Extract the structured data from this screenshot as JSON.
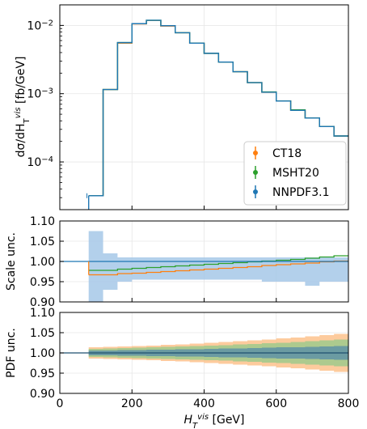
{
  "chart_data": [
    {
      "type": "line",
      "panel": "main",
      "ylabel_parts": {
        "main": "dσ/dH",
        "sub": "T",
        "sup": "vis",
        "unit": " [fb/GeV]"
      },
      "yscale": "log",
      "ylim": [
        2e-05,
        0.02
      ],
      "xlim": [
        0,
        800
      ],
      "grid": true,
      "y_tick_labels": [
        {
          "value": 0.01,
          "base": "10",
          "exp": "−2"
        },
        {
          "value": 0.001,
          "base": "10",
          "exp": "−3"
        },
        {
          "value": 0.0001,
          "base": "10",
          "exp": "−4"
        }
      ],
      "legend": {
        "placement": "lower-right",
        "entries": [
          "CT18",
          "MSHT20",
          "NNPDF3.1"
        ]
      },
      "bin_edges": [
        80,
        120,
        160,
        200,
        240,
        280,
        320,
        360,
        400,
        440,
        480,
        520,
        560,
        600,
        640,
        680,
        720,
        760,
        800
      ],
      "series": [
        {
          "name": "CT18",
          "color": "#ff7f0e",
          "values": [
            3.2e-05,
            0.00115,
            0.0055,
            0.0105,
            0.0118,
            0.0098,
            0.0078,
            0.0055,
            0.0039,
            0.0029,
            0.0021,
            0.00145,
            0.00105,
            0.00078,
            0.00057,
            0.00044,
            0.00033,
            0.00024
          ]
        },
        {
          "name": "MSHT20",
          "color": "#2ca02c",
          "values": [
            3.2e-05,
            0.00115,
            0.0056,
            0.0106,
            0.0119,
            0.0099,
            0.0078,
            0.0055,
            0.0039,
            0.0029,
            0.0021,
            0.00145,
            0.00106,
            0.00078,
            0.00058,
            0.00044,
            0.00033,
            0.00024
          ]
        },
        {
          "name": "NNPDF3.1",
          "color": "#1f77b4",
          "values": [
            3.2e-05,
            0.00115,
            0.0056,
            0.0106,
            0.0119,
            0.0099,
            0.0078,
            0.0055,
            0.0039,
            0.0029,
            0.0021,
            0.00145,
            0.00105,
            0.00078,
            0.00057,
            0.00044,
            0.00033,
            0.00024
          ]
        }
      ]
    },
    {
      "type": "area",
      "panel": "scale",
      "ylabel": "Scale unc.",
      "ylim": [
        0.9,
        1.1
      ],
      "y_ticks": [
        "1.10",
        "1.05",
        "1.00",
        "0.95",
        "0.90"
      ],
      "y_tick_values": [
        1.1,
        1.05,
        1.0,
        0.95,
        0.9
      ],
      "xlim": [
        0,
        800
      ],
      "bin_edges": [
        80,
        120,
        160,
        200,
        240,
        280,
        320,
        360,
        400,
        440,
        480,
        520,
        560,
        600,
        640,
        680,
        720,
        760,
        800
      ],
      "band": {
        "color": "#a6c8e8",
        "lower": [
          0.9,
          0.93,
          0.95,
          0.955,
          0.955,
          0.955,
          0.955,
          0.955,
          0.955,
          0.955,
          0.955,
          0.955,
          0.95,
          0.95,
          0.95,
          0.94,
          0.95,
          0.95
        ],
        "upper": [
          1.075,
          1.02,
          1.01,
          1.01,
          1.01,
          1.01,
          1.01,
          1.01,
          1.01,
          1.01,
          1.01,
          1.01,
          1.01,
          1.01,
          1.01,
          1.01,
          1.01,
          1.01
        ]
      },
      "series": [
        {
          "name": "CT18",
          "color": "#ff7f0e",
          "values": [
            0.967,
            0.967,
            0.97,
            0.971,
            0.973,
            0.975,
            0.977,
            0.979,
            0.981,
            0.983,
            0.985,
            0.987,
            0.99,
            0.992,
            0.994,
            0.996,
            0.999,
            1.001
          ]
        },
        {
          "name": "MSHT20",
          "color": "#2ca02c",
          "values": [
            0.978,
            0.978,
            0.981,
            0.983,
            0.985,
            0.987,
            0.989,
            0.991,
            0.993,
            0.995,
            0.997,
            0.999,
            1.001,
            1.003,
            1.005,
            1.008,
            1.011,
            1.014
          ]
        },
        {
          "name": "NNPDF3.1",
          "color": "#1f77b4",
          "values": [
            1,
            1,
            1,
            1,
            1,
            1,
            1,
            1,
            1,
            1,
            1,
            1,
            1,
            1,
            1,
            1,
            1,
            1
          ]
        }
      ]
    },
    {
      "type": "area",
      "panel": "pdf",
      "ylabel": "PDF unc.",
      "ylim": [
        0.9,
        1.1
      ],
      "y_ticks": [
        "1.10",
        "1.05",
        "1.00",
        "0.95",
        "0.90"
      ],
      "y_tick_values": [
        1.1,
        1.05,
        1.0,
        0.95,
        0.9
      ],
      "xlim": [
        0,
        800
      ],
      "x_ticks": [
        0,
        200,
        400,
        600,
        800
      ],
      "xlabel_parts": {
        "main": "H",
        "sub": "T",
        "sup": "vis",
        "unit": "  [GeV]"
      },
      "bin_edges": [
        80,
        120,
        160,
        200,
        240,
        280,
        320,
        360,
        400,
        440,
        480,
        520,
        560,
        600,
        640,
        680,
        720,
        760,
        800
      ],
      "bands": [
        {
          "name": "CT18",
          "color": "#fdbe85",
          "halfwidth": [
            0.014,
            0.015,
            0.016,
            0.017,
            0.018,
            0.02,
            0.021,
            0.023,
            0.025,
            0.027,
            0.029,
            0.031,
            0.033,
            0.036,
            0.038,
            0.041,
            0.044,
            0.047
          ]
        },
        {
          "name": "MSHT20",
          "color": "#98c98b",
          "halfwidth": [
            0.01,
            0.011,
            0.012,
            0.013,
            0.014,
            0.015,
            0.016,
            0.017,
            0.018,
            0.019,
            0.021,
            0.022,
            0.024,
            0.025,
            0.027,
            0.029,
            0.031,
            0.033
          ]
        },
        {
          "name": "NNPDF3.1",
          "color": "#5a8fa8",
          "halfwidth": [
            0.006,
            0.006,
            0.007,
            0.007,
            0.008,
            0.008,
            0.009,
            0.009,
            0.01,
            0.011,
            0.011,
            0.012,
            0.013,
            0.014,
            0.014,
            0.015,
            0.016,
            0.017
          ]
        }
      ],
      "series": [
        {
          "name": "CT18",
          "color": "#ff7f0e",
          "values": [
            1,
            1,
            1,
            1,
            1,
            1,
            1,
            1,
            1,
            1,
            1,
            1,
            1,
            1,
            1,
            1,
            1,
            1
          ]
        },
        {
          "name": "MSHT20",
          "color": "#2ca02c",
          "values": [
            1,
            1,
            1,
            1,
            1,
            1,
            1,
            1,
            1,
            1,
            1,
            1,
            1,
            1,
            1,
            1,
            1,
            1
          ]
        },
        {
          "name": "NNPDF3.1",
          "color": "#1f77b4",
          "values": [
            1,
            1,
            1,
            1,
            1,
            1,
            1,
            1,
            1,
            1,
            1,
            1,
            1,
            1,
            1,
            1,
            1,
            1
          ]
        }
      ]
    }
  ]
}
